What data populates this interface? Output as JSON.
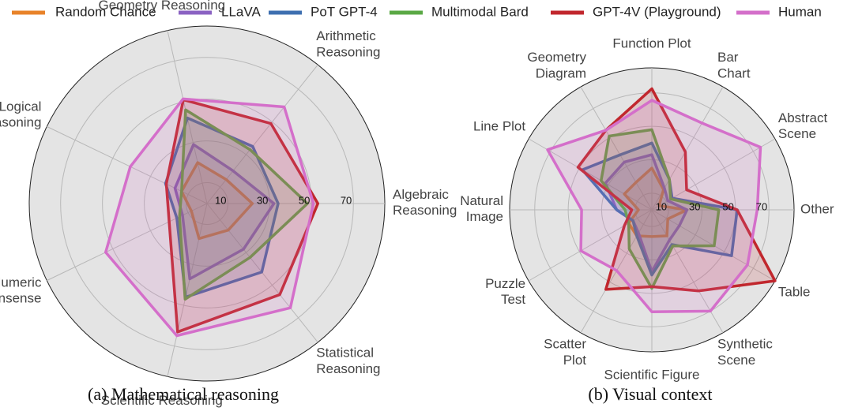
{
  "chart_data": [
    {
      "type": "radar",
      "title": "(a) Mathematical reasoning",
      "categories": [
        "Algebraic Reasoning",
        "Arithmetic Reasoning",
        "Geometry Reasoning",
        "Logical Reasoning",
        "Numeric Commonsense",
        "Scientific Reasoning",
        "Statistical Reasoning"
      ],
      "rlim": [
        0,
        85
      ],
      "rticks": [
        10,
        30,
        50,
        70
      ],
      "series": [
        {
          "name": "Random Chance",
          "color": "#e8832a",
          "values": [
            21.7,
            14.7,
            20.1,
            13.5,
            8.3,
            17.2,
            16.3
          ]
        },
        {
          "name": "LLaVA",
          "color": "#8a62c2",
          "values": [
            32,
            20,
            29,
            17,
            13,
            37,
            28
          ]
        },
        {
          "name": "PoT GPT-4",
          "color": "#3e6fb0",
          "values": [
            34,
            35,
            42,
            22,
            16,
            46,
            42
          ]
        },
        {
          "name": "Multimodal Bard",
          "color": "#5aa845",
          "values": [
            48,
            33,
            46,
            13.5,
            14.6,
            47,
            33
          ]
        },
        {
          "name": "GPT-4V (Playground)",
          "color": "#c1272d",
          "values": [
            53,
            49,
            51,
            21.6,
            20.1,
            63.1,
            55.8
          ]
        },
        {
          "name": "Human",
          "color": "#d46fca",
          "values": [
            50.9,
            59.2,
            51.4,
            40.7,
            53.8,
            64.9,
            63.9
          ]
        }
      ]
    },
    {
      "type": "radar",
      "title": "(b) Visual context",
      "categories": [
        "Other",
        "Abstract Scene",
        "Bar Chart",
        "Function Plot",
        "Geometry Diagram",
        "Line Plot",
        "Natural Image",
        "Puzzle Test",
        "Scatter Plot",
        "Scientific Figure",
        "Synthetic Scene",
        "Table"
      ],
      "rlim": [
        0,
        85
      ],
      "rticks": [
        10,
        30,
        50,
        70
      ],
      "series": [
        {
          "color": "#e8832a",
          "values": [
            21,
            5,
            14,
            25,
            19,
            19,
            8,
            16,
            18,
            16,
            18,
            11
          ]
        },
        {
          "color": "#8a62c2",
          "values": [
            21,
            11,
            15,
            33,
            33,
            32,
            21,
            13,
            16,
            37,
            21,
            19
          ]
        },
        {
          "color": "#3e6fb0",
          "values": [
            51,
            14,
            21,
            40,
            38,
            48,
            21,
            13,
            18,
            39,
            24,
            55
          ]
        },
        {
          "color": "#5aa845",
          "values": [
            40,
            13,
            21,
            48,
            51,
            35,
            16,
            16,
            27,
            47,
            25,
            43
          ]
        },
        {
          "color": "#c1272d",
          "values": [
            51,
            24,
            40,
            72.5,
            55,
            51,
            12,
            19,
            55,
            46,
            56,
            85
          ]
        },
        {
          "color": "#d46fca",
          "values": [
            63,
            75,
            60,
            65.6,
            55,
            72,
            42,
            49,
            42,
            61,
            70,
            66
          ]
        }
      ]
    }
  ]
}
